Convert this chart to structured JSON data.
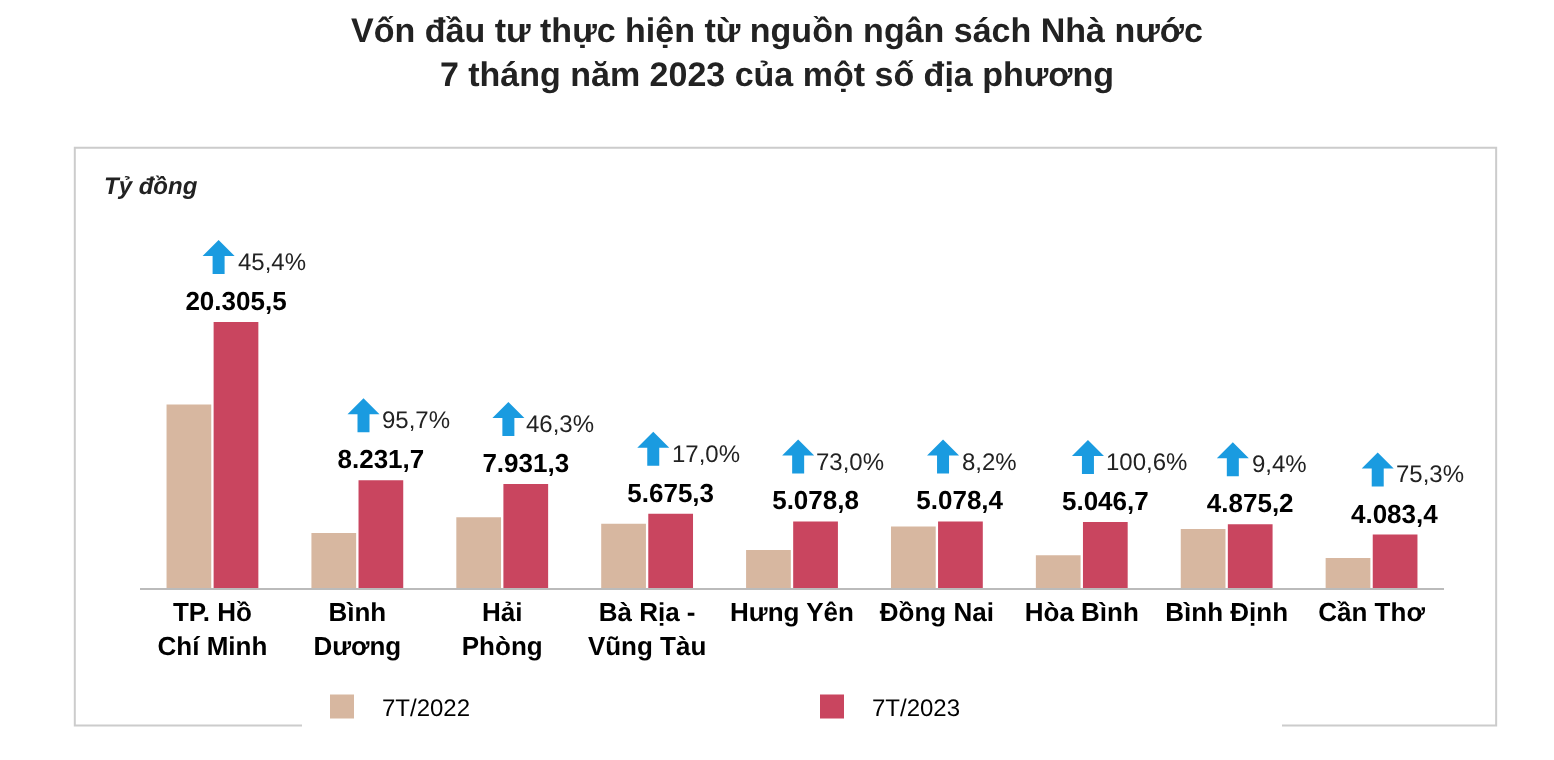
{
  "chart_data": {
    "type": "bar",
    "title": "Vốn đầu tư thực hiện từ nguồn ngân sách Nhà nước\n7 tháng năm 2023 của một số địa phương",
    "categories": [
      "TP. Hồ\nChí Minh",
      "Bình\nDương",
      "Hải\nPhòng",
      "Bà Rịa -\nVũng Tàu",
      "Hưng Yên",
      "Đồng Nai",
      "Hòa Bình",
      "Bình Định",
      "Cần Thơ"
    ],
    "series": [
      {
        "name": "7T/2022",
        "color": "#d7b7a0",
        "values": [
          14000,
          4200,
          5400,
          4900,
          2900,
          4700,
          2500,
          4500,
          2300
        ]
      },
      {
        "name": "7T/2023",
        "color": "#c9455f",
        "values": [
          20305.5,
          8231.7,
          7931.3,
          5675.3,
          5078.8,
          5078.4,
          5046.7,
          4875.2,
          4083.4
        ],
        "value_labels": [
          "20.305,5",
          "8.231,7",
          "7.931,3",
          "5.675,3",
          "5.078,8",
          "5.078,4",
          "5.046,7",
          "4.875,2",
          "4.083,4"
        ]
      }
    ],
    "annotations": [
      "Tỷ đồng",
      {
        "text": "45,4%",
        "x": "TP. Hồ\nChí Minh",
        "y": 20305.5
      },
      {
        "text": "95,7%",
        "x": "Bình\nDương",
        "y": 8231.7
      },
      {
        "text": "46,3%",
        "x": "Hải\nPhòng",
        "y": 7931.3
      },
      {
        "text": "17,0%",
        "x": "Bà Rịa -\nVũng Tàu",
        "y": 5675.3
      },
      {
        "text": "73,0%",
        "x": "Hưng Yên",
        "y": 5078.8
      },
      {
        "text": "8,2%",
        "x": "Đồng Nai",
        "y": 5078.4
      },
      {
        "text": "100,6%",
        "x": "Hòa Bình",
        "y": 5046.7
      },
      {
        "text": "9,4%",
        "x": "Bình Định",
        "y": 4875.2
      },
      {
        "text": "75,3%",
        "x": "Cần Thơ",
        "y": 4083.4
      }
    ],
    "legend": "bottom",
    "grid": false
  }
}
